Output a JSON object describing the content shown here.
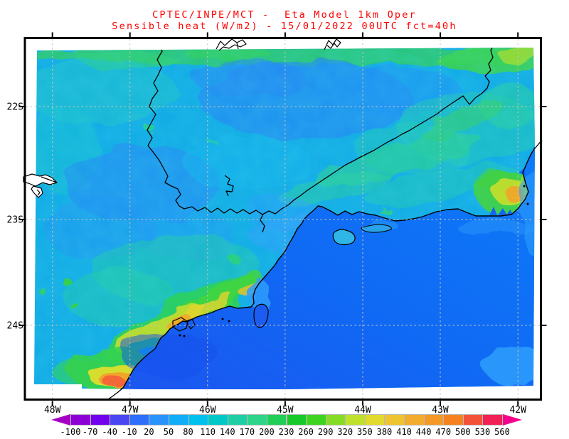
{
  "title": {
    "line1": "CPTEC/INPE/MCT -  Eta Model 1km Oper",
    "line2": "Sensible heat (W/m2) - 15/01/2022 00UTC fct=40h",
    "color": "#ff0000"
  },
  "axes": {
    "y_ticks": [
      "22S",
      "23S",
      "24S"
    ],
    "x_ticks": [
      "48W",
      "47W",
      "46W",
      "45W",
      "44W",
      "43W",
      "42W"
    ]
  },
  "colorbar": {
    "values": [
      "-100",
      "-70",
      "-40",
      "-10",
      "20",
      "50",
      "80",
      "110",
      "140",
      "170",
      "200",
      "230",
      "260",
      "290",
      "320",
      "350",
      "380",
      "410",
      "440",
      "470",
      "500",
      "530",
      "560"
    ],
    "colors": [
      "#8c00d6",
      "#7202ee",
      "#4a46f2",
      "#2e6efa",
      "#2a92fb",
      "#10aef8",
      "#00c0ee",
      "#00c8c6",
      "#1ecfa6",
      "#2cd58a",
      "#20ce58",
      "#17ca2a",
      "#3ed41e",
      "#86dc24",
      "#c0e12c",
      "#e2da2e",
      "#efc432",
      "#f2ac2e",
      "#f49826",
      "#f5821e",
      "#f45238",
      "#f22054"
    ],
    "left_arrow_color": "#a400c4",
    "right_arrow_color": "#f4028c"
  },
  "chart_data": {
    "type": "heatmap",
    "title": "Sensible heat (W/m2)",
    "center": "CPTEC/INPE/MCT",
    "model": "Eta Model 1km Oper",
    "run": "15/01/2022 00UTC",
    "forecast": "fct=40h",
    "units": "W/m2",
    "xlabel_ticks": [
      "48W",
      "47W",
      "46W",
      "45W",
      "44W",
      "43W",
      "42W"
    ],
    "ylabel_ticks": [
      "22S",
      "23S",
      "24S"
    ],
    "colorbar_levels": [
      -100,
      -70,
      -40,
      -10,
      20,
      50,
      80,
      110,
      140,
      170,
      200,
      230,
      260,
      290,
      320,
      350,
      380,
      410,
      440,
      470,
      500,
      530,
      560
    ],
    "colorbar_colors": [
      "#8c00d6",
      "#7202ee",
      "#4a46f2",
      "#2e6efa",
      "#2a92fb",
      "#10aef8",
      "#00c0ee",
      "#00c8c6",
      "#1ecfa6",
      "#2cd58a",
      "#20ce58",
      "#17ca2a",
      "#3ed41e",
      "#86dc24",
      "#c0e12c",
      "#e2da2e",
      "#efc432",
      "#f2ac2e",
      "#f49826",
      "#f5821e",
      "#f45238",
      "#f22054"
    ],
    "grid": "dashed lat-lon grid",
    "legend_position": "bottom horizontal colorbar with out-of-range arrows",
    "field_summary": [
      {
        "region": "Atlantic ocean (southeast of coastline)",
        "approx_value_wm2": "-10 to 50",
        "appearance": "uniform blue"
      },
      {
        "region": "interior land (Sao Paulo plateau)",
        "approx_value_wm2": "50 to 140",
        "appearance": "mottled cyan with blue and teal patches"
      },
      {
        "region": "highlands / top edge and Mantiqueira diagonal",
        "approx_value_wm2": "140 to 260",
        "appearance": "green bands"
      },
      {
        "region": "Serra do Mar coastal strip near Santos",
        "approx_value_wm2": "200 to 440",
        "appearance": "green-yellow band with orange cores"
      },
      {
        "region": "south-west coastal hotspot (bottom left)",
        "approx_value_wm2": "300 to 500",
        "appearance": "yellow-orange-red spot"
      },
      {
        "region": "Rio de Janeiro area hotspot (right)",
        "approx_value_wm2": "200 to 440",
        "appearance": "green-yellow patch with orange core"
      }
    ]
  }
}
